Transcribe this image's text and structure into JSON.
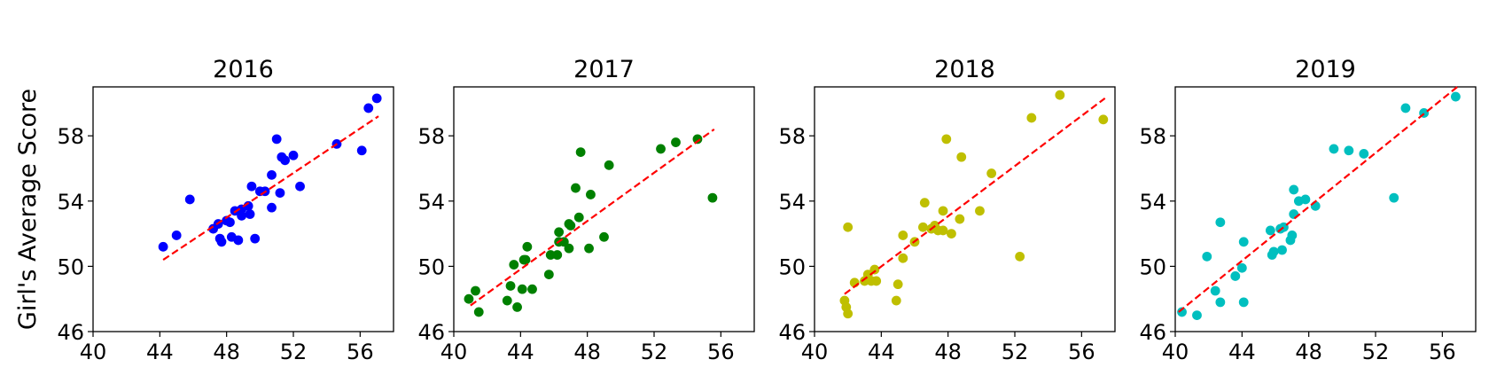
{
  "chart_data": {
    "type": "scatter",
    "ylabel": "Girl's Average Score",
    "xlim": [
      40,
      58
    ],
    "ylim": [
      46,
      61
    ],
    "xticks": [
      40,
      44,
      48,
      52,
      56
    ],
    "yticks": [
      46,
      50,
      54,
      58
    ],
    "trendline": {
      "color": "#ff0000",
      "style": "dashed"
    },
    "panels": [
      {
        "title": "2016",
        "color": "#0000ff",
        "fit": {
          "x": [
            44.2,
            57.1
          ],
          "y": [
            50.4,
            59.2
          ]
        },
        "points": [
          [
            44.2,
            51.2
          ],
          [
            45.0,
            51.9
          ],
          [
            45.8,
            54.1
          ],
          [
            47.2,
            52.3
          ],
          [
            47.5,
            52.6
          ],
          [
            47.6,
            51.7
          ],
          [
            47.7,
            51.5
          ],
          [
            48.0,
            52.8
          ],
          [
            48.2,
            52.7
          ],
          [
            48.3,
            51.8
          ],
          [
            48.5,
            53.4
          ],
          [
            48.7,
            51.6
          ],
          [
            48.9,
            53.5
          ],
          [
            48.9,
            53.1
          ],
          [
            49.3,
            53.7
          ],
          [
            49.4,
            53.2
          ],
          [
            49.5,
            54.9
          ],
          [
            49.7,
            51.7
          ],
          [
            50.0,
            54.6
          ],
          [
            50.3,
            54.6
          ],
          [
            50.7,
            55.6
          ],
          [
            50.7,
            53.6
          ],
          [
            51.0,
            57.8
          ],
          [
            51.2,
            54.5
          ],
          [
            51.3,
            56.7
          ],
          [
            51.5,
            56.5
          ],
          [
            52.0,
            56.8
          ],
          [
            52.4,
            54.9
          ],
          [
            54.6,
            57.5
          ],
          [
            56.1,
            57.1
          ],
          [
            56.5,
            59.7
          ],
          [
            57.0,
            60.3
          ]
        ]
      },
      {
        "title": "2017",
        "color": "#008000",
        "fit": {
          "x": [
            41.0,
            55.6
          ],
          "y": [
            47.6,
            58.4
          ]
        },
        "points": [
          [
            40.9,
            48.0
          ],
          [
            41.3,
            48.5
          ],
          [
            41.5,
            47.2
          ],
          [
            43.2,
            47.9
          ],
          [
            43.4,
            48.8
          ],
          [
            43.6,
            50.1
          ],
          [
            43.8,
            47.5
          ],
          [
            44.1,
            48.6
          ],
          [
            44.2,
            50.4
          ],
          [
            44.3,
            50.4
          ],
          [
            44.4,
            51.2
          ],
          [
            44.7,
            48.6
          ],
          [
            45.7,
            49.5
          ],
          [
            45.8,
            50.7
          ],
          [
            46.2,
            50.7
          ],
          [
            46.3,
            51.5
          ],
          [
            46.3,
            52.1
          ],
          [
            46.6,
            51.5
          ],
          [
            46.9,
            51.1
          ],
          [
            46.9,
            52.6
          ],
          [
            47.0,
            52.5
          ],
          [
            47.3,
            54.8
          ],
          [
            47.5,
            53.0
          ],
          [
            47.6,
            57.0
          ],
          [
            48.1,
            51.1
          ],
          [
            48.2,
            54.4
          ],
          [
            49.0,
            51.8
          ],
          [
            49.3,
            56.2
          ],
          [
            52.4,
            57.2
          ],
          [
            53.3,
            57.6
          ],
          [
            54.6,
            57.8
          ],
          [
            55.5,
            54.2
          ]
        ]
      },
      {
        "title": "2018",
        "color": "#bfbf00",
        "fit": {
          "x": [
            41.8,
            57.4
          ],
          "y": [
            48.3,
            60.3
          ]
        },
        "points": [
          [
            41.8,
            47.9
          ],
          [
            41.9,
            47.5
          ],
          [
            42.0,
            52.4
          ],
          [
            42.0,
            47.1
          ],
          [
            42.4,
            49.0
          ],
          [
            43.0,
            49.1
          ],
          [
            43.2,
            49.5
          ],
          [
            43.4,
            49.1
          ],
          [
            43.6,
            49.8
          ],
          [
            43.7,
            49.1
          ],
          [
            44.9,
            47.9
          ],
          [
            45.0,
            48.9
          ],
          [
            45.3,
            50.5
          ],
          [
            45.3,
            51.9
          ],
          [
            46.0,
            51.5
          ],
          [
            46.5,
            52.4
          ],
          [
            46.6,
            53.9
          ],
          [
            47.0,
            52.3
          ],
          [
            47.2,
            52.5
          ],
          [
            47.4,
            52.2
          ],
          [
            47.7,
            52.2
          ],
          [
            47.7,
            53.4
          ],
          [
            47.9,
            57.8
          ],
          [
            48.2,
            52.0
          ],
          [
            48.7,
            52.9
          ],
          [
            48.8,
            56.7
          ],
          [
            49.9,
            53.4
          ],
          [
            50.6,
            55.7
          ],
          [
            52.3,
            50.6
          ],
          [
            53.0,
            59.1
          ],
          [
            54.7,
            60.5
          ],
          [
            57.3,
            59.0
          ]
        ]
      },
      {
        "title": "2019",
        "color": "#00bfbf",
        "fit": {
          "x": [
            40.2,
            56.9
          ],
          "y": [
            47.2,
            61.0
          ]
        },
        "points": [
          [
            40.4,
            47.2
          ],
          [
            41.3,
            47.0
          ],
          [
            41.9,
            50.6
          ],
          [
            42.4,
            48.5
          ],
          [
            42.7,
            52.7
          ],
          [
            42.7,
            47.8
          ],
          [
            43.6,
            49.4
          ],
          [
            44.0,
            49.9
          ],
          [
            44.1,
            47.8
          ],
          [
            44.1,
            51.5
          ],
          [
            45.7,
            52.2
          ],
          [
            45.8,
            50.7
          ],
          [
            45.9,
            50.9
          ],
          [
            46.3,
            52.3
          ],
          [
            46.4,
            51.0
          ],
          [
            46.5,
            52.4
          ],
          [
            46.9,
            51.6
          ],
          [
            47.0,
            51.9
          ],
          [
            47.1,
            53.2
          ],
          [
            47.1,
            54.7
          ],
          [
            47.4,
            54.0
          ],
          [
            47.8,
            54.1
          ],
          [
            48.4,
            53.7
          ],
          [
            49.5,
            57.2
          ],
          [
            50.4,
            57.1
          ],
          [
            51.3,
            56.9
          ],
          [
            53.1,
            54.2
          ],
          [
            53.8,
            59.7
          ],
          [
            54.9,
            59.4
          ],
          [
            56.8,
            60.4
          ]
        ]
      }
    ]
  }
}
